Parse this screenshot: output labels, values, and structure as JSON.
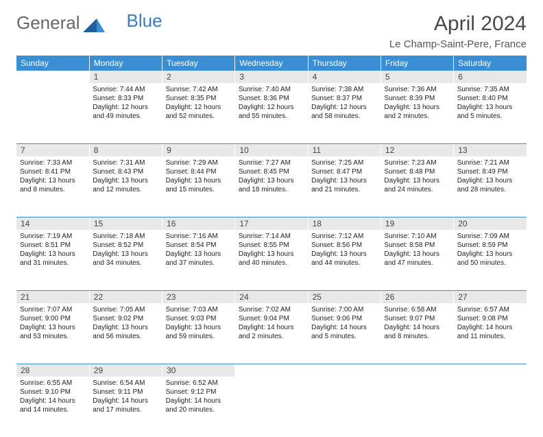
{
  "brand": {
    "part1": "General",
    "part2": "Blue"
  },
  "title": "April 2024",
  "location": "Le Champ-Saint-Pere, France",
  "colors": {
    "header_bg": "#3a8fd4",
    "header_text": "#ffffff",
    "daynum_bg": "#e8e8e8",
    "text": "#333333",
    "brand_gray": "#666666",
    "brand_blue": "#3a7cbf"
  },
  "weekdays": [
    "Sunday",
    "Monday",
    "Tuesday",
    "Wednesday",
    "Thursday",
    "Friday",
    "Saturday"
  ],
  "weeks": [
    {
      "nums": [
        "",
        "1",
        "2",
        "3",
        "4",
        "5",
        "6"
      ],
      "cells": [
        null,
        {
          "sr": "Sunrise: 7:44 AM",
          "ss": "Sunset: 8:33 PM",
          "d1": "Daylight: 12 hours",
          "d2": "and 49 minutes."
        },
        {
          "sr": "Sunrise: 7:42 AM",
          "ss": "Sunset: 8:35 PM",
          "d1": "Daylight: 12 hours",
          "d2": "and 52 minutes."
        },
        {
          "sr": "Sunrise: 7:40 AM",
          "ss": "Sunset: 8:36 PM",
          "d1": "Daylight: 12 hours",
          "d2": "and 55 minutes."
        },
        {
          "sr": "Sunrise: 7:38 AM",
          "ss": "Sunset: 8:37 PM",
          "d1": "Daylight: 12 hours",
          "d2": "and 58 minutes."
        },
        {
          "sr": "Sunrise: 7:36 AM",
          "ss": "Sunset: 8:39 PM",
          "d1": "Daylight: 13 hours",
          "d2": "and 2 minutes."
        },
        {
          "sr": "Sunrise: 7:35 AM",
          "ss": "Sunset: 8:40 PM",
          "d1": "Daylight: 13 hours",
          "d2": "and 5 minutes."
        }
      ]
    },
    {
      "nums": [
        "7",
        "8",
        "9",
        "10",
        "11",
        "12",
        "13"
      ],
      "cells": [
        {
          "sr": "Sunrise: 7:33 AM",
          "ss": "Sunset: 8:41 PM",
          "d1": "Daylight: 13 hours",
          "d2": "and 8 minutes."
        },
        {
          "sr": "Sunrise: 7:31 AM",
          "ss": "Sunset: 8:43 PM",
          "d1": "Daylight: 13 hours",
          "d2": "and 12 minutes."
        },
        {
          "sr": "Sunrise: 7:29 AM",
          "ss": "Sunset: 8:44 PM",
          "d1": "Daylight: 13 hours",
          "d2": "and 15 minutes."
        },
        {
          "sr": "Sunrise: 7:27 AM",
          "ss": "Sunset: 8:45 PM",
          "d1": "Daylight: 13 hours",
          "d2": "and 18 minutes."
        },
        {
          "sr": "Sunrise: 7:25 AM",
          "ss": "Sunset: 8:47 PM",
          "d1": "Daylight: 13 hours",
          "d2": "and 21 minutes."
        },
        {
          "sr": "Sunrise: 7:23 AM",
          "ss": "Sunset: 8:48 PM",
          "d1": "Daylight: 13 hours",
          "d2": "and 24 minutes."
        },
        {
          "sr": "Sunrise: 7:21 AM",
          "ss": "Sunset: 8:49 PM",
          "d1": "Daylight: 13 hours",
          "d2": "and 28 minutes."
        }
      ]
    },
    {
      "nums": [
        "14",
        "15",
        "16",
        "17",
        "18",
        "19",
        "20"
      ],
      "cells": [
        {
          "sr": "Sunrise: 7:19 AM",
          "ss": "Sunset: 8:51 PM",
          "d1": "Daylight: 13 hours",
          "d2": "and 31 minutes."
        },
        {
          "sr": "Sunrise: 7:18 AM",
          "ss": "Sunset: 8:52 PM",
          "d1": "Daylight: 13 hours",
          "d2": "and 34 minutes."
        },
        {
          "sr": "Sunrise: 7:16 AM",
          "ss": "Sunset: 8:54 PM",
          "d1": "Daylight: 13 hours",
          "d2": "and 37 minutes."
        },
        {
          "sr": "Sunrise: 7:14 AM",
          "ss": "Sunset: 8:55 PM",
          "d1": "Daylight: 13 hours",
          "d2": "and 40 minutes."
        },
        {
          "sr": "Sunrise: 7:12 AM",
          "ss": "Sunset: 8:56 PM",
          "d1": "Daylight: 13 hours",
          "d2": "and 44 minutes."
        },
        {
          "sr": "Sunrise: 7:10 AM",
          "ss": "Sunset: 8:58 PM",
          "d1": "Daylight: 13 hours",
          "d2": "and 47 minutes."
        },
        {
          "sr": "Sunrise: 7:09 AM",
          "ss": "Sunset: 8:59 PM",
          "d1": "Daylight: 13 hours",
          "d2": "and 50 minutes."
        }
      ]
    },
    {
      "nums": [
        "21",
        "22",
        "23",
        "24",
        "25",
        "26",
        "27"
      ],
      "cells": [
        {
          "sr": "Sunrise: 7:07 AM",
          "ss": "Sunset: 9:00 PM",
          "d1": "Daylight: 13 hours",
          "d2": "and 53 minutes."
        },
        {
          "sr": "Sunrise: 7:05 AM",
          "ss": "Sunset: 9:02 PM",
          "d1": "Daylight: 13 hours",
          "d2": "and 56 minutes."
        },
        {
          "sr": "Sunrise: 7:03 AM",
          "ss": "Sunset: 9:03 PM",
          "d1": "Daylight: 13 hours",
          "d2": "and 59 minutes."
        },
        {
          "sr": "Sunrise: 7:02 AM",
          "ss": "Sunset: 9:04 PM",
          "d1": "Daylight: 14 hours",
          "d2": "and 2 minutes."
        },
        {
          "sr": "Sunrise: 7:00 AM",
          "ss": "Sunset: 9:06 PM",
          "d1": "Daylight: 14 hours",
          "d2": "and 5 minutes."
        },
        {
          "sr": "Sunrise: 6:58 AM",
          "ss": "Sunset: 9:07 PM",
          "d1": "Daylight: 14 hours",
          "d2": "and 8 minutes."
        },
        {
          "sr": "Sunrise: 6:57 AM",
          "ss": "Sunset: 9:08 PM",
          "d1": "Daylight: 14 hours",
          "d2": "and 11 minutes."
        }
      ]
    },
    {
      "nums": [
        "28",
        "29",
        "30",
        "",
        "",
        "",
        ""
      ],
      "cells": [
        {
          "sr": "Sunrise: 6:55 AM",
          "ss": "Sunset: 9:10 PM",
          "d1": "Daylight: 14 hours",
          "d2": "and 14 minutes."
        },
        {
          "sr": "Sunrise: 6:54 AM",
          "ss": "Sunset: 9:11 PM",
          "d1": "Daylight: 14 hours",
          "d2": "and 17 minutes."
        },
        {
          "sr": "Sunrise: 6:52 AM",
          "ss": "Sunset: 9:12 PM",
          "d1": "Daylight: 14 hours",
          "d2": "and 20 minutes."
        },
        null,
        null,
        null,
        null
      ]
    }
  ]
}
